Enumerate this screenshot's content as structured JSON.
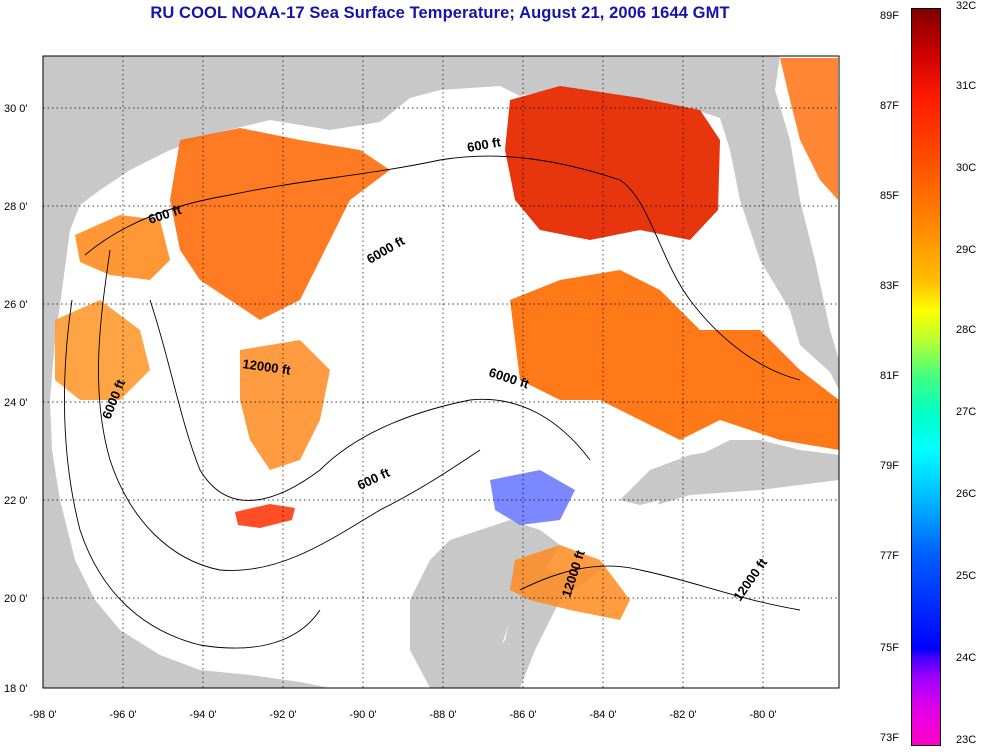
{
  "title": "RU COOL  NOAA-17  Sea Surface Temperature;  August 21, 2006 1644 GMT",
  "map": {
    "lon_ticks": [
      "-98 0'",
      "-96 0'",
      "-94 0'",
      "-92 0'",
      "-90 0'",
      "-88 0'",
      "-86 0'",
      "-84 0'",
      "-82 0'",
      "-80 0'"
    ],
    "lat_ticks": [
      "30 0'",
      "28 0'",
      "26 0'",
      "24 0'",
      "22 0'",
      "20 0'",
      "18 0'"
    ],
    "contour_labels": [
      "600 ft",
      "600 ft",
      "600 ft",
      "6000 ft",
      "6000 ft",
      "6000 ft",
      "12000 ft",
      "12000 ft",
      "12000 ft"
    ],
    "colors": {
      "land": "#c8c8c8",
      "ocean_no_data": "#ffffff",
      "grid": "#000000"
    }
  },
  "colorbar": {
    "fahrenheit": [
      "89F",
      "87F",
      "85F",
      "83F",
      "81F",
      "79F",
      "77F",
      "75F",
      "73F"
    ],
    "celsius": [
      "32C",
      "31C",
      "30C",
      "29C",
      "28C",
      "27C",
      "26C",
      "25C",
      "24C",
      "23C"
    ]
  }
}
